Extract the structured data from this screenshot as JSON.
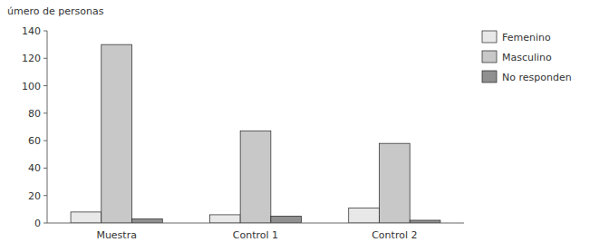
{
  "chart_data": {
    "type": "bar",
    "y_label": "úmero de personas",
    "categories": [
      "Muestra",
      "Control 1",
      "Control 2"
    ],
    "series": [
      {
        "name": "Femenino",
        "color": "#e8e8e8",
        "values": [
          8,
          6,
          11
        ]
      },
      {
        "name": "Masculino",
        "color": "#c8c8c8",
        "values": [
          130,
          67,
          58
        ]
      },
      {
        "name": "No responden",
        "color": "#909090",
        "values": [
          3,
          5,
          2
        ]
      }
    ],
    "ylim": [
      0,
      140
    ],
    "yticks": [
      0,
      20,
      40,
      60,
      80,
      100,
      120,
      140
    ],
    "grid": false,
    "legend": "upper right"
  }
}
